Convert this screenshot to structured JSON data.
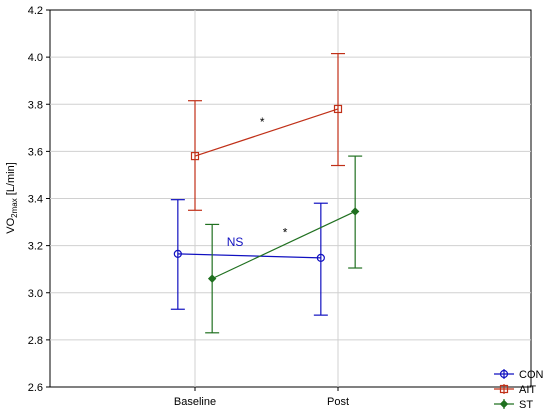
{
  "chart_data": {
    "type": "line",
    "categories": [
      "Baseline",
      "Post"
    ],
    "ylabel_main": "VO",
    "ylabel_sub": "2max",
    "ylabel_rest": " [L/min]",
    "ylim": [
      2.6,
      4.2
    ],
    "yticks": [
      "2.6",
      "2.8",
      "3.0",
      "3.2",
      "3.4",
      "3.6",
      "3.8",
      "4.0",
      "4.2"
    ],
    "grid": true,
    "legend_position": "bottom-right",
    "series": [
      {
        "name": "CON",
        "color": "#1010c0",
        "marker": "circle",
        "x_offset": -0.12,
        "values": [
          3.165,
          3.148
        ],
        "lower": [
          2.93,
          2.905
        ],
        "upper": [
          3.395,
          3.38
        ]
      },
      {
        "name": "AIT",
        "color": "#c03018",
        "marker": "square",
        "x_offset": 0.0,
        "values": [
          3.58,
          3.78
        ],
        "lower": [
          3.35,
          3.54
        ],
        "upper": [
          3.815,
          4.015
        ]
      },
      {
        "name": "ST",
        "color": "#207020",
        "marker": "diamond",
        "x_offset": 0.12,
        "values": [
          3.06,
          3.345
        ],
        "lower": [
          2.83,
          3.105
        ],
        "upper": [
          3.29,
          3.58
        ]
      }
    ],
    "annotations": [
      {
        "text": "NS",
        "x": 0.28,
        "y": 3.215,
        "color": "#1010c0"
      },
      {
        "text": "*",
        "x": 0.63,
        "y": 3.255,
        "color": "#000000"
      },
      {
        "text": "*",
        "x": 0.47,
        "y": 3.725,
        "color": "#000000"
      }
    ]
  }
}
